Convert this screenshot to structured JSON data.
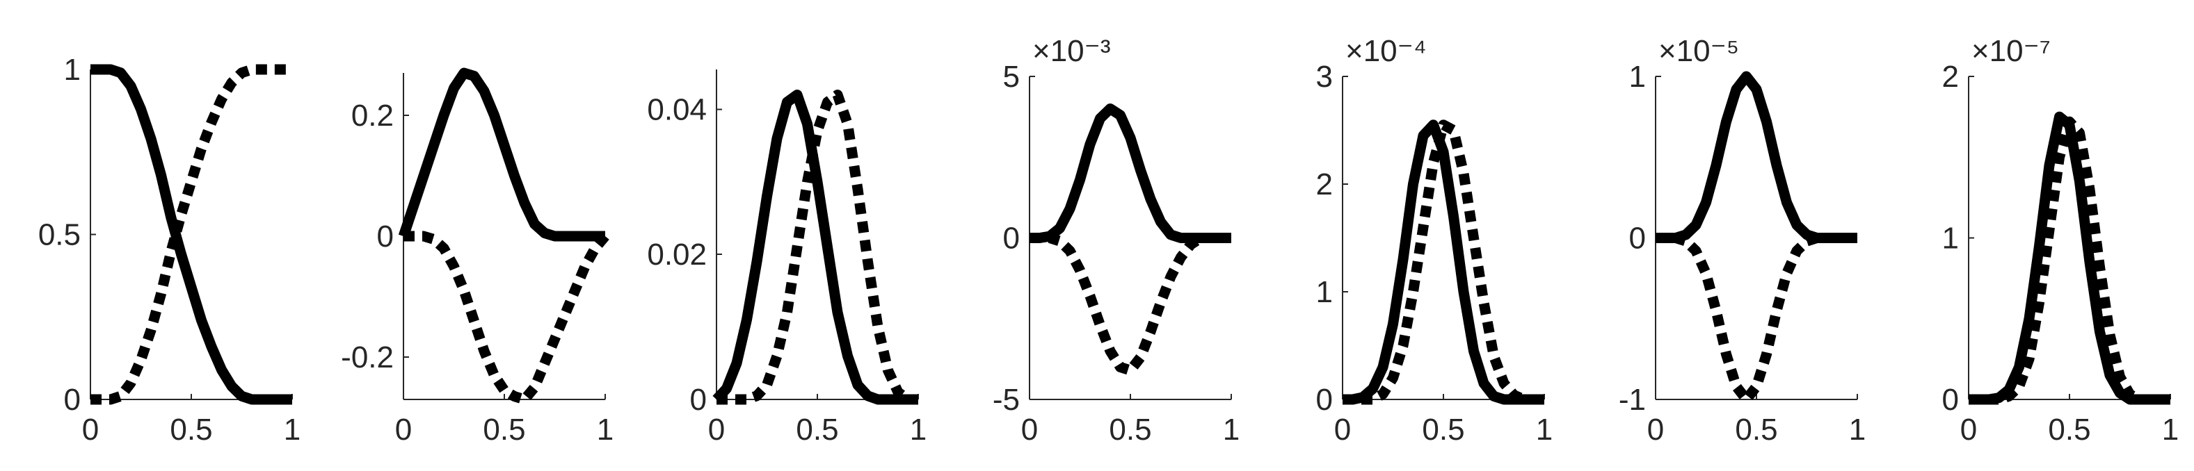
{
  "figure": {
    "background": "#ffffff",
    "axis_color": "#262626",
    "line_color": "#000000"
  },
  "chart_data": [
    {
      "type": "line",
      "title": "",
      "xlabel": "",
      "ylabel": "",
      "xlim": [
        0,
        1
      ],
      "ylim": [
        0,
        1
      ],
      "xticks": [
        0,
        0.5,
        1
      ],
      "xtick_labels": [
        "0",
        "0.5",
        "1"
      ],
      "yticks": [
        0,
        0.5,
        1
      ],
      "ytick_labels": [
        "0",
        "0.5",
        "1"
      ],
      "exponent_label": "",
      "x": [
        0,
        0.05,
        0.1,
        0.15,
        0.2,
        0.25,
        0.3,
        0.35,
        0.4,
        0.45,
        0.5,
        0.55,
        0.6,
        0.65,
        0.7,
        0.75,
        0.8,
        0.85,
        0.9,
        0.95,
        1
      ],
      "series": [
        {
          "style": "solid",
          "values": [
            1.0,
            1.0,
            1.0,
            0.99,
            0.95,
            0.88,
            0.79,
            0.68,
            0.55,
            0.44,
            0.34,
            0.24,
            0.16,
            0.09,
            0.04,
            0.01,
            0,
            0,
            0,
            0,
            0
          ]
        },
        {
          "style": "dotted",
          "values": [
            0,
            0,
            0,
            0.01,
            0.05,
            0.12,
            0.21,
            0.32,
            0.45,
            0.56,
            0.66,
            0.76,
            0.84,
            0.91,
            0.96,
            0.99,
            1.0,
            1.0,
            1.0,
            1.0,
            1.0
          ]
        }
      ]
    },
    {
      "type": "line",
      "title": "",
      "xlabel": "",
      "ylabel": "",
      "xlim": [
        0,
        1
      ],
      "ylim": [
        -0.27,
        0.27
      ],
      "xticks": [
        0,
        0.5,
        1
      ],
      "xtick_labels": [
        "0",
        "0.5",
        "1"
      ],
      "yticks": [
        -0.2,
        0,
        0.2
      ],
      "ytick_labels": [
        "-0.2",
        "0",
        "0.2"
      ],
      "exponent_label": "",
      "x": [
        0,
        0.05,
        0.1,
        0.15,
        0.2,
        0.25,
        0.3,
        0.35,
        0.4,
        0.45,
        0.5,
        0.55,
        0.6,
        0.65,
        0.7,
        0.75,
        0.8,
        0.85,
        0.9,
        0.95,
        1
      ],
      "series": [
        {
          "style": "solid",
          "values": [
            0.0,
            0.05,
            0.1,
            0.15,
            0.2,
            0.245,
            0.27,
            0.265,
            0.24,
            0.2,
            0.15,
            0.1,
            0.055,
            0.02,
            0.005,
            0,
            0,
            0,
            0,
            0,
            0
          ]
        },
        {
          "style": "dotted",
          "values": [
            0,
            0,
            0,
            -0.005,
            -0.02,
            -0.05,
            -0.09,
            -0.14,
            -0.19,
            -0.23,
            -0.255,
            -0.265,
            -0.27,
            -0.25,
            -0.21,
            -0.17,
            -0.13,
            -0.09,
            -0.05,
            -0.02,
            0.0
          ]
        }
      ]
    },
    {
      "type": "line",
      "title": "",
      "xlabel": "",
      "ylabel": "",
      "xlim": [
        0,
        1
      ],
      "ylim": [
        0,
        0.0455
      ],
      "xticks": [
        0,
        0.5,
        1
      ],
      "xtick_labels": [
        "0",
        "0.5",
        "1"
      ],
      "yticks": [
        0,
        0.02,
        0.04
      ],
      "ytick_labels": [
        "0",
        "0.02",
        "0.04"
      ],
      "exponent_label": "",
      "x": [
        0,
        0.05,
        0.1,
        0.15,
        0.2,
        0.25,
        0.3,
        0.35,
        0.4,
        0.45,
        0.5,
        0.55,
        0.6,
        0.65,
        0.7,
        0.75,
        0.8,
        0.85,
        0.9,
        0.95,
        1
      ],
      "series": [
        {
          "style": "solid",
          "values": [
            0,
            0.0015,
            0.005,
            0.011,
            0.019,
            0.028,
            0.036,
            0.041,
            0.042,
            0.038,
            0.03,
            0.021,
            0.012,
            0.006,
            0.002,
            0.0005,
            0,
            0,
            0,
            0,
            0
          ]
        },
        {
          "style": "dotted",
          "values": [
            0,
            0,
            0,
            0,
            0.0005,
            0.002,
            0.006,
            0.012,
            0.021,
            0.03,
            0.037,
            0.041,
            0.042,
            0.038,
            0.029,
            0.019,
            0.01,
            0.004,
            0.001,
            0,
            0
          ]
        }
      ]
    },
    {
      "type": "line",
      "title": "",
      "xlabel": "",
      "ylabel": "",
      "xlim": [
        0,
        1
      ],
      "ylim": [
        -5,
        5
      ],
      "xticks": [
        0,
        0.5,
        1
      ],
      "xtick_labels": [
        "0",
        "0.5",
        "1"
      ],
      "yticks": [
        -5,
        0,
        5
      ],
      "ytick_labels": [
        "-5",
        "0",
        "5"
      ],
      "exponent_label": "×10⁻³",
      "x": [
        0,
        0.05,
        0.1,
        0.15,
        0.2,
        0.25,
        0.3,
        0.35,
        0.4,
        0.45,
        0.5,
        0.55,
        0.6,
        0.65,
        0.7,
        0.75,
        0.8,
        0.85,
        0.9,
        0.95,
        1
      ],
      "series": [
        {
          "style": "solid",
          "values": [
            0,
            0,
            0.05,
            0.3,
            0.9,
            1.8,
            2.9,
            3.7,
            4.0,
            3.8,
            3.1,
            2.1,
            1.2,
            0.5,
            0.1,
            0,
            0,
            0,
            0,
            0,
            0
          ]
        },
        {
          "style": "dotted",
          "values": [
            0,
            0,
            0,
            -0.1,
            -0.4,
            -1.0,
            -1.8,
            -2.7,
            -3.5,
            -4.0,
            -4.1,
            -3.7,
            -2.9,
            -2.0,
            -1.2,
            -0.6,
            -0.2,
            0,
            0,
            0,
            0
          ]
        }
      ]
    },
    {
      "type": "line",
      "title": "",
      "xlabel": "",
      "ylabel": "",
      "xlim": [
        0,
        1
      ],
      "ylim": [
        0,
        3
      ],
      "xticks": [
        0,
        0.5,
        1
      ],
      "xtick_labels": [
        "0",
        "0.5",
        "1"
      ],
      "yticks": [
        0,
        1,
        2,
        3
      ],
      "ytick_labels": [
        "0",
        "1",
        "2",
        "3"
      ],
      "exponent_label": "×10⁻⁴",
      "x": [
        0,
        0.05,
        0.1,
        0.15,
        0.2,
        0.25,
        0.3,
        0.35,
        0.4,
        0.45,
        0.5,
        0.55,
        0.6,
        0.65,
        0.7,
        0.75,
        0.8,
        0.85,
        0.9,
        0.95,
        1
      ],
      "series": [
        {
          "style": "solid",
          "values": [
            0,
            0,
            0.02,
            0.1,
            0.3,
            0.7,
            1.3,
            2.0,
            2.45,
            2.55,
            2.3,
            1.7,
            1.0,
            0.45,
            0.15,
            0.03,
            0,
            0,
            0,
            0,
            0
          ]
        },
        {
          "style": "dotted",
          "values": [
            0,
            0,
            0,
            0,
            0.05,
            0.2,
            0.5,
            1.0,
            1.6,
            2.2,
            2.55,
            2.5,
            2.1,
            1.5,
            0.9,
            0.4,
            0.15,
            0.04,
            0,
            0,
            0
          ]
        }
      ]
    },
    {
      "type": "line",
      "title": "",
      "xlabel": "",
      "ylabel": "",
      "xlim": [
        0,
        1
      ],
      "ylim": [
        -1,
        1
      ],
      "xticks": [
        0,
        0.5,
        1
      ],
      "xtick_labels": [
        "0",
        "0.5",
        "1"
      ],
      "yticks": [
        -1,
        0,
        1
      ],
      "ytick_labels": [
        "-1",
        "0",
        "1"
      ],
      "exponent_label": "×10⁻⁵",
      "x": [
        0,
        0.05,
        0.1,
        0.15,
        0.2,
        0.25,
        0.3,
        0.35,
        0.4,
        0.45,
        0.5,
        0.55,
        0.6,
        0.65,
        0.7,
        0.75,
        0.8,
        0.85,
        0.9,
        0.95,
        1
      ],
      "series": [
        {
          "style": "solid",
          "values": [
            0,
            0,
            0,
            0.02,
            0.08,
            0.22,
            0.45,
            0.72,
            0.92,
            1.0,
            0.92,
            0.72,
            0.45,
            0.22,
            0.08,
            0.02,
            0,
            0,
            0,
            0,
            0
          ]
        },
        {
          "style": "dotted",
          "values": [
            0,
            0,
            0,
            -0.02,
            -0.08,
            -0.22,
            -0.45,
            -0.72,
            -0.92,
            -1.0,
            -0.92,
            -0.72,
            -0.45,
            -0.22,
            -0.08,
            -0.02,
            0,
            0,
            0,
            0,
            0
          ]
        }
      ]
    },
    {
      "type": "line",
      "title": "",
      "xlabel": "",
      "ylabel": "",
      "xlim": [
        0,
        1
      ],
      "ylim": [
        0,
        2
      ],
      "xticks": [
        0,
        0.5,
        1
      ],
      "xtick_labels": [
        "0",
        "0.5",
        "1"
      ],
      "yticks": [
        0,
        1,
        2
      ],
      "ytick_labels": [
        "0",
        "1",
        "2"
      ],
      "exponent_label": "×10⁻⁷",
      "x": [
        0,
        0.05,
        0.1,
        0.15,
        0.2,
        0.25,
        0.3,
        0.35,
        0.4,
        0.45,
        0.5,
        0.55,
        0.6,
        0.65,
        0.7,
        0.75,
        0.8,
        0.85,
        0.9,
        0.95,
        1
      ],
      "series": [
        {
          "style": "solid",
          "values": [
            0,
            0,
            0,
            0.01,
            0.06,
            0.2,
            0.5,
            0.95,
            1.45,
            1.75,
            1.7,
            1.35,
            0.85,
            0.42,
            0.15,
            0.04,
            0,
            0,
            0,
            0,
            0
          ]
        },
        {
          "style": "dotted",
          "values": [
            0,
            0,
            0,
            0,
            0.02,
            0.08,
            0.25,
            0.6,
            1.05,
            1.5,
            1.72,
            1.65,
            1.3,
            0.82,
            0.4,
            0.14,
            0.03,
            0,
            0,
            0,
            0
          ]
        }
      ]
    }
  ]
}
